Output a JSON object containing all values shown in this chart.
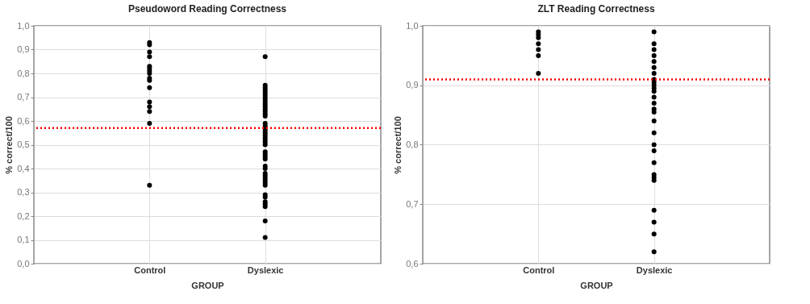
{
  "chart_data": [
    {
      "type": "scatter",
      "title": "Pseudoword Reading Correctness",
      "xlabel": "GROUP",
      "ylabel": "% correct/100",
      "categories": [
        "Control",
        "Dyslexic"
      ],
      "series": [
        {
          "color": "#000000",
          "x": [
            "Control",
            "Control",
            "Control",
            "Control",
            "Control",
            "Control",
            "Control",
            "Control",
            "Control",
            "Control",
            "Control",
            "Control",
            "Control",
            "Control",
            "Control",
            "Control"
          ],
          "values": [
            0.93,
            0.92,
            0.89,
            0.87,
            0.83,
            0.82,
            0.81,
            0.8,
            0.78,
            0.77,
            0.74,
            0.68,
            0.66,
            0.64,
            0.59,
            0.33
          ]
        },
        {
          "color": "#000000",
          "x": [
            "Dyslexic",
            "Dyslexic",
            "Dyslexic",
            "Dyslexic",
            "Dyslexic",
            "Dyslexic",
            "Dyslexic",
            "Dyslexic",
            "Dyslexic",
            "Dyslexic",
            "Dyslexic",
            "Dyslexic",
            "Dyslexic",
            "Dyslexic",
            "Dyslexic",
            "Dyslexic",
            "Dyslexic",
            "Dyslexic",
            "Dyslexic",
            "Dyslexic",
            "Dyslexic",
            "Dyslexic",
            "Dyslexic",
            "Dyslexic",
            "Dyslexic",
            "Dyslexic",
            "Dyslexic",
            "Dyslexic",
            "Dyslexic",
            "Dyslexic",
            "Dyslexic",
            "Dyslexic",
            "Dyslexic",
            "Dyslexic",
            "Dyslexic",
            "Dyslexic",
            "Dyslexic",
            "Dyslexic",
            "Dyslexic",
            "Dyslexic",
            "Dyslexic",
            "Dyslexic",
            "Dyslexic",
            "Dyslexic"
          ],
          "values": [
            0.87,
            0.75,
            0.74,
            0.73,
            0.72,
            0.71,
            0.7,
            0.69,
            0.68,
            0.67,
            0.66,
            0.65,
            0.64,
            0.63,
            0.62,
            0.59,
            0.58,
            0.57,
            0.56,
            0.55,
            0.54,
            0.53,
            0.52,
            0.51,
            0.5,
            0.47,
            0.46,
            0.45,
            0.44,
            0.41,
            0.4,
            0.38,
            0.37,
            0.36,
            0.35,
            0.34,
            0.33,
            0.29,
            0.28,
            0.26,
            0.25,
            0.24,
            0.18,
            0.11
          ]
        }
      ],
      "ylim": [
        0,
        1
      ],
      "yticks": [
        {
          "value": 0,
          "label": "0,0"
        },
        {
          "value": 0.1,
          "label": "0,1"
        },
        {
          "value": 0.2,
          "label": "0,2"
        },
        {
          "value": 0.3,
          "label": "0,3"
        },
        {
          "value": 0.4,
          "label": "0,4"
        },
        {
          "value": 0.5,
          "label": "0,5"
        },
        {
          "value": 0.6,
          "label": "0,6"
        },
        {
          "value": 0.7,
          "label": "0,7"
        },
        {
          "value": 0.8,
          "label": "0,8"
        },
        {
          "value": 0.9,
          "label": "0,9"
        },
        {
          "value": 1,
          "label": "1,0"
        }
      ],
      "grid": true,
      "marker": "circle",
      "ref_lines": [
        {
          "axis": "y",
          "value": 0.57,
          "color": "#ff0000",
          "line_style": "dotted"
        }
      ]
    },
    {
      "type": "scatter",
      "title": "ZLT Reading Correctness",
      "xlabel": "GROUP",
      "ylabel": "% correct/100",
      "categories": [
        "Control",
        "Dyslexic"
      ],
      "series": [
        {
          "color": "#000000",
          "x": [
            "Control",
            "Control",
            "Control",
            "Control",
            "Control",
            "Control",
            "Control"
          ],
          "values": [
            0.99,
            0.985,
            0.98,
            0.97,
            0.96,
            0.95,
            0.92
          ]
        },
        {
          "color": "#000000",
          "x": [
            "Dyslexic",
            "Dyslexic",
            "Dyslexic",
            "Dyslexic",
            "Dyslexic",
            "Dyslexic",
            "Dyslexic",
            "Dyslexic",
            "Dyslexic",
            "Dyslexic",
            "Dyslexic",
            "Dyslexic",
            "Dyslexic",
            "Dyslexic",
            "Dyslexic",
            "Dyslexic",
            "Dyslexic",
            "Dyslexic",
            "Dyslexic",
            "Dyslexic",
            "Dyslexic",
            "Dyslexic",
            "Dyslexic",
            "Dyslexic",
            "Dyslexic",
            "Dyslexic",
            "Dyslexic",
            "Dyslexic"
          ],
          "values": [
            0.99,
            0.97,
            0.96,
            0.95,
            0.94,
            0.93,
            0.92,
            0.91,
            0.905,
            0.9,
            0.895,
            0.89,
            0.88,
            0.87,
            0.86,
            0.855,
            0.84,
            0.82,
            0.8,
            0.79,
            0.77,
            0.75,
            0.745,
            0.74,
            0.69,
            0.67,
            0.65,
            0.62
          ]
        }
      ],
      "ylim": [
        0.6,
        1
      ],
      "yticks": [
        {
          "value": 0.6,
          "label": "0,6"
        },
        {
          "value": 0.7,
          "label": "0,7"
        },
        {
          "value": 0.8,
          "label": "0,8"
        },
        {
          "value": 0.9,
          "label": "0,9"
        },
        {
          "value": 1,
          "label": "1,0"
        }
      ],
      "grid": true,
      "marker": "circle",
      "ref_lines": [
        {
          "axis": "y",
          "value": 0.91,
          "color": "#ff0000",
          "line_style": "dotted"
        }
      ]
    }
  ]
}
